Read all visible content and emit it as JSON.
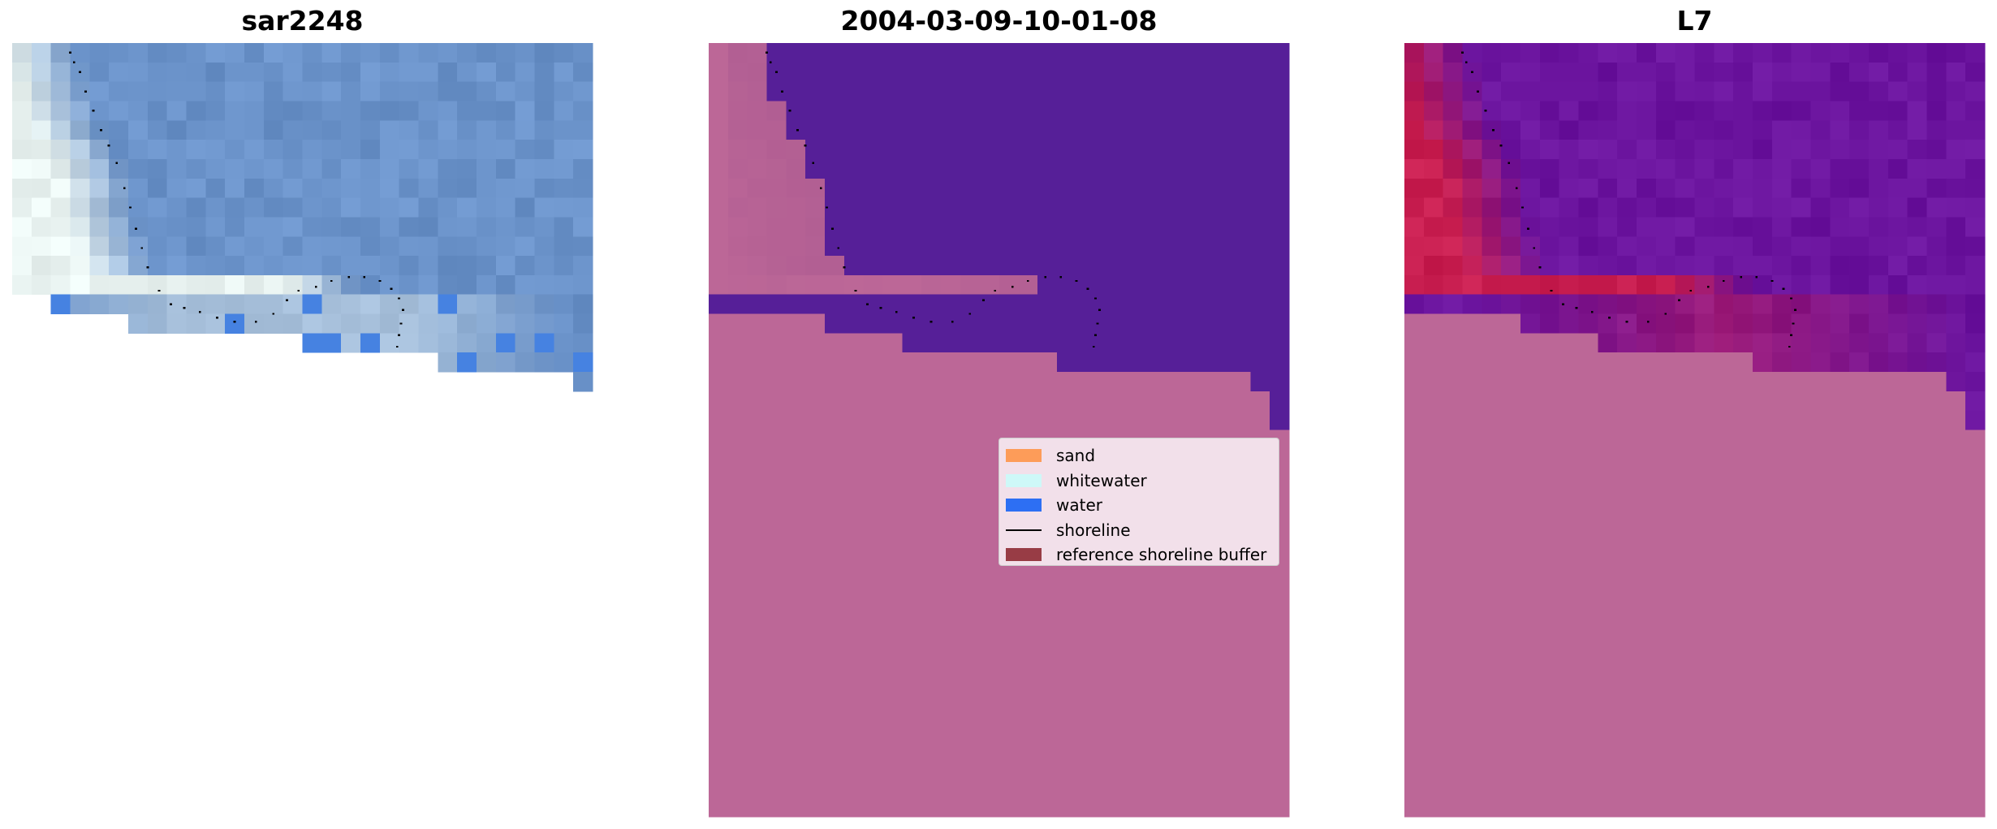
{
  "figure": {
    "panels": [
      {
        "title": "sar2248",
        "kind": "rgb-image"
      },
      {
        "title": "2004-03-09-10-01-08",
        "kind": "classified-image"
      },
      {
        "title": "L7",
        "kind": "index-image"
      }
    ],
    "legend": {
      "location": "center-right of middle panel",
      "entries": [
        {
          "label": "sand",
          "color": "#ff8f40",
          "kind": "patch"
        },
        {
          "label": "whitewater",
          "color": "#c8fbfa",
          "kind": "patch"
        },
        {
          "label": "water",
          "color": "#0a5bf5",
          "kind": "patch"
        },
        {
          "label": "shoreline",
          "color": "#000000",
          "kind": "line"
        },
        {
          "label": "reference shoreline buffer",
          "color": "#8e2a33",
          "kind": "patch"
        }
      ]
    },
    "colors": {
      "classified_water": "#561f98",
      "classified_land": "#bc6797",
      "index_water": "#6b149e",
      "index_land": "#bc6797",
      "rgb_sea": "#6a92c9",
      "rgb_foam": "#eaf4f2"
    }
  },
  "chart_data": {
    "type": "heatmap",
    "grid": {
      "columns": 30,
      "rows": 40
    },
    "shoreline": {
      "description": "dotted shoreline traced from image grid coordinates (column, row)",
      "points": [
        [
          3.0,
          0.5
        ],
        [
          3.2,
          1.0
        ],
        [
          3.5,
          1.5
        ],
        [
          3.8,
          2.5
        ],
        [
          4.2,
          3.5
        ],
        [
          4.6,
          4.5
        ],
        [
          5.0,
          5.3
        ],
        [
          5.4,
          6.2
        ],
        [
          5.8,
          7.5
        ],
        [
          6.1,
          8.5
        ],
        [
          6.4,
          9.6
        ],
        [
          6.7,
          10.6
        ],
        [
          7.0,
          11.6
        ],
        [
          7.6,
          12.8
        ],
        [
          8.2,
          13.5
        ],
        [
          8.9,
          13.7
        ],
        [
          9.7,
          13.9
        ],
        [
          10.6,
          14.2
        ],
        [
          11.5,
          14.4
        ],
        [
          12.6,
          14.4
        ],
        [
          13.5,
          14.0
        ],
        [
          14.2,
          13.3
        ],
        [
          14.8,
          12.8
        ],
        [
          15.7,
          12.6
        ],
        [
          16.5,
          12.3
        ],
        [
          17.4,
          12.1
        ],
        [
          18.2,
          12.1
        ],
        [
          19.0,
          12.3
        ],
        [
          19.6,
          12.7
        ],
        [
          20.0,
          13.2
        ],
        [
          20.2,
          13.8
        ],
        [
          20.1,
          14.5
        ],
        [
          20.0,
          15.1
        ],
        [
          19.9,
          15.7
        ]
      ]
    },
    "boundaries": {
      "description": "per-column boundary rows: top of nodata region (rgb), top of land mask (classified / index)",
      "rgb_nodata_top": [
        13,
        13,
        14,
        14,
        14,
        14,
        15,
        15,
        15,
        15,
        15,
        15,
        15,
        15,
        15,
        16,
        16,
        16,
        16,
        16,
        16,
        16,
        17,
        17,
        17,
        17,
        17,
        17,
        17,
        18
      ],
      "land_top": [
        14,
        14,
        14,
        14,
        14,
        14,
        15,
        15,
        15,
        15,
        16,
        16,
        16,
        16,
        16,
        16,
        16,
        16,
        17,
        17,
        17,
        17,
        17,
        17,
        17,
        17,
        17,
        17,
        18,
        20
      ]
    }
  }
}
